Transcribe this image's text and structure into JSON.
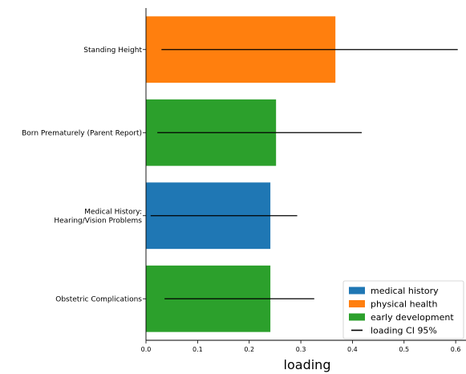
{
  "chart_data": {
    "type": "bar",
    "orientation": "horizontal",
    "title": "",
    "xlabel": "loading",
    "ylabel": "",
    "xlim": [
      0.0,
      0.62
    ],
    "xticks": [
      "0.0",
      "0.1",
      "0.2",
      "0.3",
      "0.4",
      "0.5",
      "0.6"
    ],
    "grid": false,
    "legend_position": "lower-right",
    "categories": [
      [
        "Standing Height"
      ],
      [
        "Born Prematurely (Parent Report)"
      ],
      [
        "Medical History:",
        "Hearing/Vision Problems"
      ],
      [
        "Obstetric Complications"
      ]
    ],
    "values": [
      0.367,
      0.252,
      0.241,
      0.241
    ],
    "groups": [
      "physical health",
      "early development",
      "medical history",
      "early development"
    ],
    "ci95": [
      [
        0.03,
        0.604
      ],
      [
        0.022,
        0.418
      ],
      [
        0.009,
        0.293
      ],
      [
        0.036,
        0.326
      ]
    ],
    "legend": [
      {
        "label": "medical history",
        "kind": "patch",
        "color": "#1f77b4"
      },
      {
        "label": "physical health",
        "kind": "patch",
        "color": "#ff7f0e"
      },
      {
        "label": "early development",
        "kind": "patch",
        "color": "#2ca02c"
      },
      {
        "label": "loading CI 95%",
        "kind": "line",
        "color": "#000000"
      }
    ]
  }
}
